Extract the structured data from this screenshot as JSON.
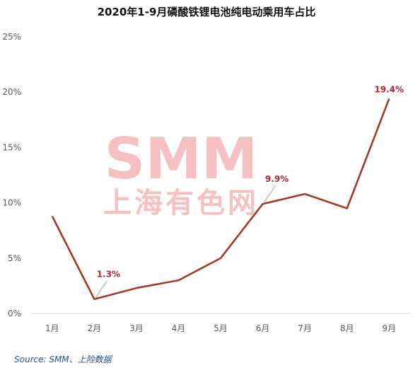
{
  "chart_data": {
    "type": "line",
    "title": "2020年1-9月磷酸铁锂电池纯电动乘用车占比",
    "categories": [
      "1月",
      "2月",
      "3月",
      "4月",
      "5月",
      "6月",
      "7月",
      "8月",
      "9月"
    ],
    "series": [
      {
        "values": [
          8.8,
          1.3,
          2.3,
          3.0,
          5.0,
          9.9,
          10.8,
          9.5,
          19.4
        ],
        "color": "#a8321c"
      }
    ],
    "ylim": [
      0,
      25
    ],
    "yticks": [
      0,
      5,
      10,
      15,
      20,
      25
    ],
    "ytick_labels": [
      "0%",
      "5%",
      "10%",
      "15%",
      "20%",
      "25%"
    ],
    "grid": false,
    "annotations": [
      {
        "category": "2月",
        "label": "1.3%"
      },
      {
        "category": "6月",
        "label": "9.9%"
      },
      {
        "category": "9月",
        "label": "19.4%"
      }
    ],
    "annotation_color": "#c0232c"
  },
  "watermark": {
    "logo": "SMM",
    "subtitle": "上海有色网",
    "color": "#f6b6b6"
  },
  "source": "Source: SMM、上险数据"
}
